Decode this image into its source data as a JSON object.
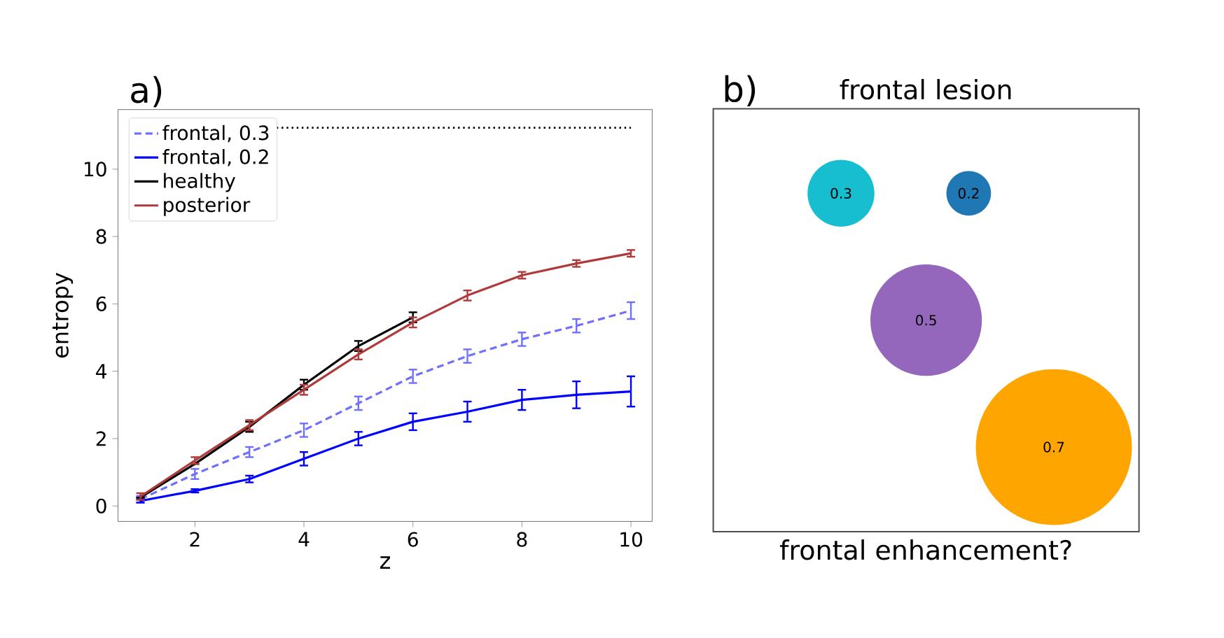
{
  "chart_data": [
    {
      "type": "line",
      "xlabel": "z",
      "ylabel": "entropy",
      "annotations": [
        "a)"
      ],
      "x": [
        1,
        2,
        3,
        4,
        5,
        6,
        7,
        8,
        9,
        10
      ],
      "xlim": [
        0.59,
        10.39
      ],
      "ylim": [
        -0.46,
        11.77
      ],
      "xticks": [
        2,
        4,
        6,
        8,
        10
      ],
      "yticks": [
        0,
        2,
        4,
        6,
        8,
        10
      ],
      "legend": "top left",
      "series": [
        {
          "name": "frontal, 0.3",
          "color": "#7070ff",
          "line_style": "dashed",
          "values": [
            0.2,
            0.95,
            1.6,
            2.25,
            3.05,
            3.85,
            4.45,
            4.95,
            5.35,
            5.8
          ],
          "errors": [
            0.1,
            0.15,
            0.15,
            0.2,
            0.2,
            0.2,
            0.2,
            0.2,
            0.2,
            0.25
          ]
        },
        {
          "name": "frontal, 0.2",
          "color": "#0000ff",
          "line_style": "solid",
          "values": [
            0.15,
            0.45,
            0.8,
            1.4,
            2.0,
            2.5,
            2.8,
            3.15,
            3.3,
            3.4
          ],
          "errors": [
            0.05,
            0.05,
            0.1,
            0.2,
            0.2,
            0.25,
            0.3,
            0.3,
            0.4,
            0.45
          ]
        },
        {
          "name": "healthy",
          "color": "#000000",
          "line_style": "solid",
          "values": [
            0.25,
            1.25,
            2.35,
            3.6,
            4.75,
            5.6,
            null,
            null,
            null,
            null
          ],
          "errors": [
            null,
            null,
            0.15,
            0.15,
            0.15,
            0.15,
            null,
            null,
            null,
            null
          ]
        },
        {
          "name": "posterior",
          "color": "#b03a3a",
          "line_style": "solid",
          "values": [
            0.28,
            1.35,
            2.4,
            3.45,
            4.5,
            5.45,
            6.25,
            6.85,
            7.2,
            7.5
          ],
          "errors": [
            0.1,
            0.1,
            0.15,
            0.15,
            0.15,
            0.15,
            0.15,
            0.1,
            0.1,
            0.1
          ]
        }
      ],
      "ref_lines": [
        {
          "axis": "y",
          "value": 11.23,
          "color": "#000000",
          "line_style": "dotted"
        }
      ]
    },
    {
      "type": "other",
      "title": "frontal lesion",
      "xlabel": "frontal enhancement?",
      "annotations": [
        "b)"
      ],
      "values": [
        0.3,
        0.2,
        0.5,
        0.7
      ],
      "colors": [
        "#17becf",
        "#1f77b4",
        "#9467bd",
        "#ffa500"
      ],
      "data_labels": true
    }
  ]
}
